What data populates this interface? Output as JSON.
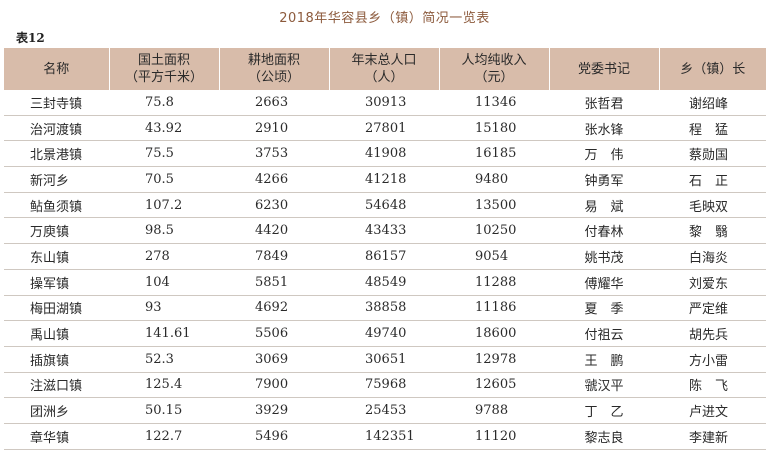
{
  "title": "2018年华容县乡（镇）简况一览表",
  "table_no": "表12",
  "headers": {
    "name": "名称",
    "area": [
      "国土面积",
      "（平方千米）"
    ],
    "land": [
      "耕地面积",
      "（公顷）"
    ],
    "pop": [
      "年末总人口",
      "（人）"
    ],
    "income": [
      "人均纯收入",
      "（元）"
    ],
    "secretary": "党委书记",
    "head": "乡（镇）长"
  },
  "rows": [
    {
      "name": "三封寺镇",
      "area": "75.8",
      "land": "2663",
      "pop": "30913",
      "income": "11346",
      "secretary": "张哲君",
      "head": "谢绍峰"
    },
    {
      "name": "治河渡镇",
      "area": "43.92",
      "land": "2910",
      "pop": "27801",
      "income": "15180",
      "secretary": "张水锋",
      "head": "程　猛"
    },
    {
      "name": "北景港镇",
      "area": "75.5",
      "land": "3753",
      "pop": "41908",
      "income": "16185",
      "secretary": "万　伟",
      "head": "蔡勋国"
    },
    {
      "name": "新河乡",
      "area": "70.5",
      "land": "4266",
      "pop": "41218",
      "income": "9480",
      "secretary": "钟勇军",
      "head": "石　正"
    },
    {
      "name": "鲇鱼须镇",
      "area": "107.2",
      "land": "6230",
      "pop": "54648",
      "income": "13500",
      "secretary": "易　斌",
      "head": "毛映双"
    },
    {
      "name": "万庾镇",
      "area": "98.5",
      "land": "4420",
      "pop": "43433",
      "income": "10250",
      "secretary": "付春林",
      "head": "黎　翳"
    },
    {
      "name": "东山镇",
      "area": "278",
      "land": "7849",
      "pop": "86157",
      "income": "9054",
      "secretary": "姚书茂",
      "head": "白海炎"
    },
    {
      "name": "操军镇",
      "area": "104",
      "land": "5851",
      "pop": "48549",
      "income": "11288",
      "secretary": "傅耀华",
      "head": "刘爱东"
    },
    {
      "name": "梅田湖镇",
      "area": "93",
      "land": "4692",
      "pop": "38858",
      "income": "11186",
      "secretary": "夏　季",
      "head": "严定维"
    },
    {
      "name": "禹山镇",
      "area": "141.61",
      "land": "5506",
      "pop": "49740",
      "income": "18600",
      "secretary": "付祖云",
      "head": "胡先兵"
    },
    {
      "name": "插旗镇",
      "area": "52.3",
      "land": "3069",
      "pop": "30651",
      "income": "12978",
      "secretary": "王　鹏",
      "head": "方小雷"
    },
    {
      "name": "注滋口镇",
      "area": "125.4",
      "land": "7900",
      "pop": "75968",
      "income": "12605",
      "secretary": "虢汉平",
      "head": "陈　飞"
    },
    {
      "name": "团洲乡",
      "area": "50.15",
      "land": "3929",
      "pop": "25453",
      "income": "9788",
      "secretary": "丁　乙",
      "head": "卢进文"
    },
    {
      "name": "章华镇",
      "area": "122.7",
      "land": "5496",
      "pop": "142351",
      "income": "11120",
      "secretary": "黎志良",
      "head": "李建新"
    }
  ]
}
